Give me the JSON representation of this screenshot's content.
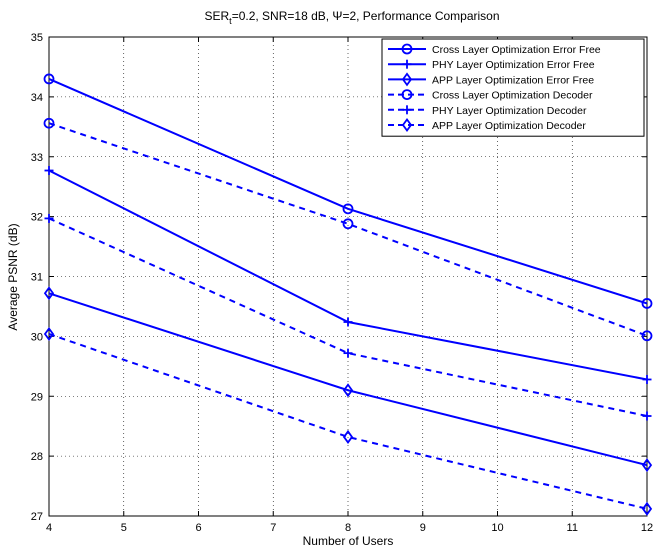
{
  "chart_data": {
    "type": "line",
    "title": "SERt=0.2, SNR=18 dB, Ψ=2, Performance Comparison",
    "title_parts": {
      "prefix": "SER",
      "subscript": "t",
      "suffix": "=0.2, SNR=18 dB, Ψ=2, Performance Comparison"
    },
    "xlabel": "Number of Users",
    "ylabel": "Average PSNR (dB)",
    "xlim": [
      4,
      12
    ],
    "ylim": [
      27,
      35
    ],
    "xticks": [
      4,
      5,
      6,
      7,
      8,
      9,
      10,
      11,
      12
    ],
    "yticks": [
      27,
      28,
      29,
      30,
      31,
      32,
      33,
      34,
      35
    ],
    "grid": true,
    "legend_position": "top-right",
    "color": "#0000ff",
    "x": [
      4,
      8,
      12
    ],
    "series": [
      {
        "name": "Cross Layer Optimization Error Free",
        "values": [
          34.3,
          32.13,
          30.55
        ],
        "line": "solid",
        "marker": "circle"
      },
      {
        "name": "PHY Layer Optimization Error Free",
        "values": [
          32.77,
          30.24,
          29.28
        ],
        "line": "solid",
        "marker": "plus"
      },
      {
        "name": "APP Layer Optimization Error Free",
        "values": [
          30.72,
          29.1,
          27.85
        ],
        "line": "solid",
        "marker": "diamond"
      },
      {
        "name": "Cross Layer Optimization Decoder",
        "values": [
          33.56,
          31.88,
          30.01
        ],
        "line": "dashed",
        "marker": "circle"
      },
      {
        "name": "PHY Layer Optimization Decoder",
        "values": [
          31.97,
          29.72,
          28.67
        ],
        "line": "dashed",
        "marker": "plus"
      },
      {
        "name": "APP Layer Optimization Decoder",
        "values": [
          30.04,
          28.32,
          27.12
        ],
        "line": "dashed",
        "marker": "diamond"
      }
    ]
  }
}
